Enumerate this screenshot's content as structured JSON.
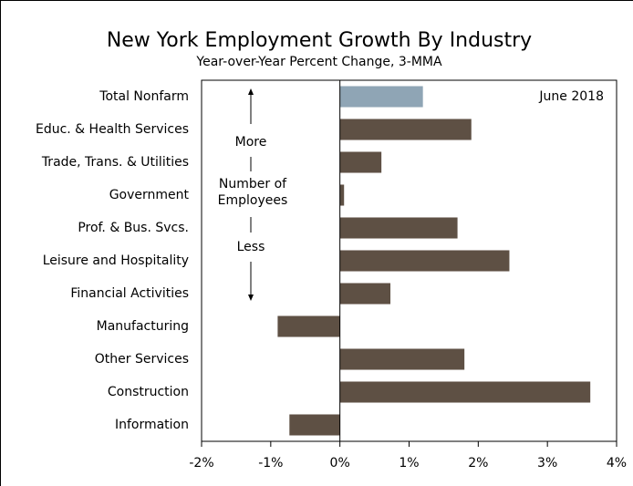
{
  "chart_data": {
    "type": "bar",
    "orientation": "horizontal",
    "title": "New York Employment Growth By Industry",
    "subtitle": "Year-over-Year Percent Change, 3-MMA",
    "categories": [
      "Total Nonfarm",
      "Educ. & Health Services",
      "Trade, Trans. & Utilities",
      "Government",
      "Prof. & Bus. Svcs.",
      "Leisure and Hospitality",
      "Financial Activities",
      "Manufacturing",
      "Other Services",
      "Construction",
      "Information"
    ],
    "values": [
      1.2,
      1.9,
      0.6,
      0.06,
      1.7,
      2.45,
      0.73,
      -0.9,
      1.8,
      3.62,
      -0.73
    ],
    "colors": [
      "#8fa5b5",
      "#5e5044",
      "#5e5044",
      "#5e5044",
      "#5e5044",
      "#5e5044",
      "#5e5044",
      "#5e5044",
      "#5e5044",
      "#5e5044",
      "#5e5044"
    ],
    "xlim": [
      -2,
      4
    ],
    "xticks": [
      {
        "value": -2,
        "label": "-2%"
      },
      {
        "value": -1,
        "label": "-1%"
      },
      {
        "value": 0,
        "label": "0%"
      },
      {
        "value": 1,
        "label": "1%"
      },
      {
        "value": 2,
        "label": "2%"
      },
      {
        "value": 3,
        "label": "3%"
      },
      {
        "value": 4,
        "label": "4%"
      }
    ],
    "annotations": {
      "date": "June 2018",
      "more": "More",
      "middle": [
        "Number of",
        "Employees"
      ],
      "less": "Less"
    }
  }
}
